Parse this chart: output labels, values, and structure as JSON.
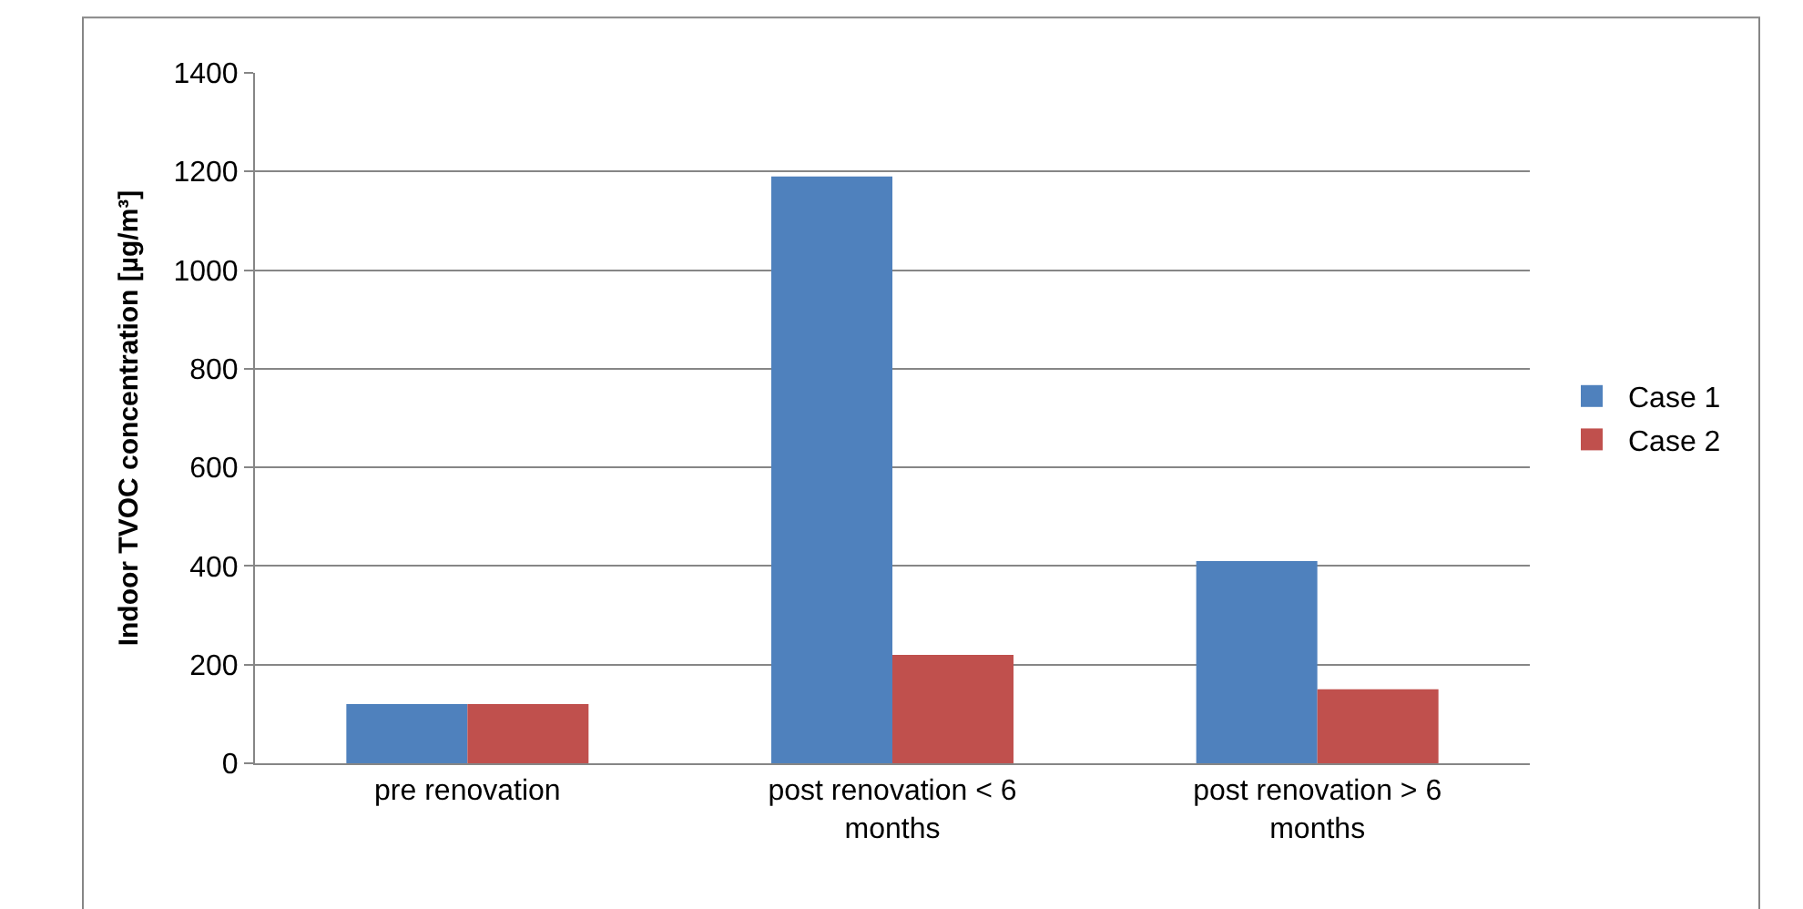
{
  "chart_data": {
    "type": "bar",
    "ylabel": "Indoor TVOC concentration [µg/m³]",
    "categories": [
      "pre renovation",
      "post renovation < 6 months",
      "post renovation > 6 months"
    ],
    "series": [
      {
        "name": "Case 1",
        "color": "#4f81bd",
        "values": [
          120,
          1190,
          410
        ]
      },
      {
        "name": "Case 2",
        "color": "#c0504d",
        "values": [
          120,
          220,
          150
        ]
      }
    ],
    "ylim": [
      0,
      1400
    ],
    "yticks": [
      0,
      200,
      400,
      600,
      800,
      1000,
      1200,
      1400
    ],
    "grid": "y",
    "legend": "right"
  }
}
